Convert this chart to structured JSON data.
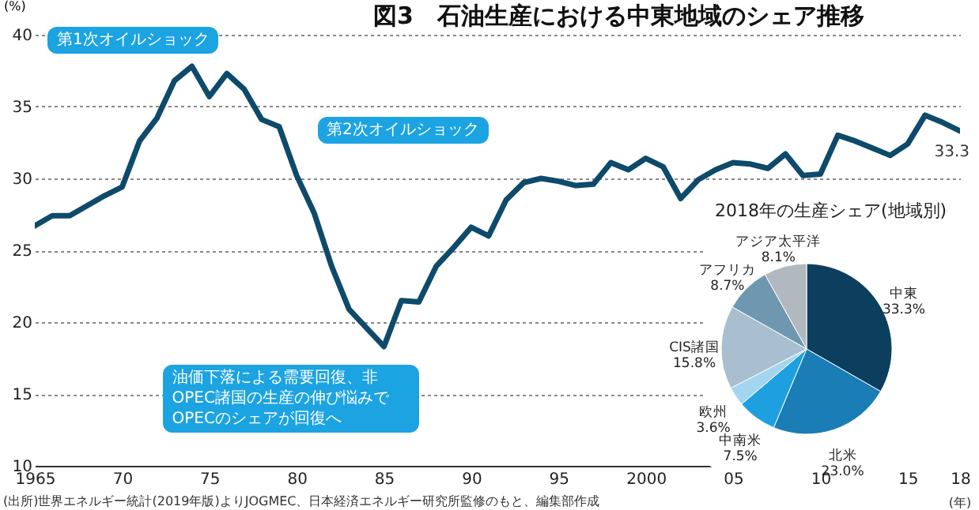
{
  "chart_data": [
    {
      "type": "line",
      "title": "図3　石油生産における中東地域のシェア推移",
      "ylabel": "(%)",
      "xlabel": "(年)",
      "x": [
        1965,
        1966,
        1967,
        1968,
        1969,
        1970,
        1971,
        1972,
        1973,
        1974,
        1975,
        1976,
        1977,
        1978,
        1979,
        1980,
        1981,
        1982,
        1983,
        1984,
        1985,
        1986,
        1987,
        1988,
        1989,
        1990,
        1991,
        1992,
        1993,
        1994,
        1995,
        1996,
        1997,
        1998,
        1999,
        2000,
        2001,
        2002,
        2003,
        2004,
        2005,
        2006,
        2007,
        2008,
        2009,
        2010,
        2011,
        2012,
        2013,
        2014,
        2015,
        2016,
        2017,
        2018
      ],
      "series": [
        {
          "color": "#0d4a6b",
          "values": [
            26.7,
            27.4,
            27.4,
            28.1,
            28.8,
            29.4,
            32.6,
            34.2,
            36.8,
            37.8,
            35.7,
            37.3,
            36.2,
            34.1,
            33.6,
            30.2,
            27.6,
            23.9,
            20.9,
            19.6,
            18.3,
            21.5,
            21.4,
            23.9,
            25.2,
            26.6,
            26.0,
            28.5,
            29.7,
            30.0,
            29.8,
            29.5,
            29.6,
            31.1,
            30.6,
            31.4,
            30.8,
            28.6,
            29.9,
            30.6,
            31.1,
            31.0,
            30.7,
            31.7,
            30.2,
            30.3,
            33.0,
            32.6,
            32.1,
            31.6,
            32.4,
            34.4,
            33.9,
            33.3
          ],
          "value_labels": [
            null,
            null,
            null,
            null,
            null,
            null,
            null,
            null,
            null,
            null,
            null,
            null,
            null,
            null,
            null,
            null,
            null,
            null,
            null,
            null,
            null,
            null,
            null,
            null,
            null,
            null,
            null,
            null,
            null,
            null,
            null,
            null,
            null,
            null,
            null,
            null,
            null,
            null,
            null,
            null,
            null,
            null,
            null,
            null,
            null,
            null,
            null,
            null,
            null,
            null,
            null,
            null,
            null,
            "33.3"
          ]
        }
      ],
      "xlim": [
        1965,
        2018
      ],
      "ylim": [
        10,
        40
      ],
      "xticks": [
        1965,
        {
          "value": 1970,
          "label": "70"
        },
        {
          "value": 1975,
          "label": "75"
        },
        {
          "value": 1980,
          "label": "80"
        },
        {
          "value": 1985,
          "label": "85"
        },
        {
          "value": 1990,
          "label": "90"
        },
        {
          "value": 1995,
          "label": "95"
        },
        2000,
        {
          "value": 2005,
          "label": "05"
        },
        {
          "value": 2010,
          "label": "10"
        },
        {
          "value": 2015,
          "label": "15"
        },
        {
          "value": 2018,
          "label": "18"
        }
      ],
      "yticks": [
        10,
        15,
        20,
        25,
        30,
        35,
        40
      ],
      "grid": "y",
      "legend": false,
      "marker": "none",
      "line_style": "solid",
      "annotations": [
        {
          "text": "第1次オイルショック",
          "x": 1974,
          "y": 37.8
        },
        {
          "text": "第2次オイルショック",
          "x": 1979,
          "y": 33.6
        },
        {
          "text": "油価下落による需要回復、非OPEC諸国の生産の伸び悩みでOPECのシェアが回復へ",
          "x": 1985,
          "y": 18.3
        },
        "(出所)世界エネルギー統計(2019年版)よりJOGMEC、日本経済エネルギー研究所監修のもと、編集部作成"
      ]
    },
    {
      "type": "pie",
      "title": "2018年の生産シェア(地域別)",
      "categories": [
        "中東",
        "北米",
        "中南米",
        "欧州",
        "CIS諸国",
        "アフリカ",
        "アジア太平洋"
      ],
      "values": [
        33.3,
        23.0,
        7.5,
        3.6,
        15.8,
        8.7,
        8.1
      ],
      "value_labels": [
        "33.3%",
        "23.0%",
        "7.5%",
        "3.6%",
        "15.8%",
        "8.7%",
        "8.1%"
      ],
      "colors": [
        "#0c3f5e",
        "#1a7db5",
        "#1d9fe0",
        "#a3d5f0",
        "#a9bfcf",
        "#6f98b0",
        "#b1b8bf"
      ],
      "legend": false
    }
  ]
}
